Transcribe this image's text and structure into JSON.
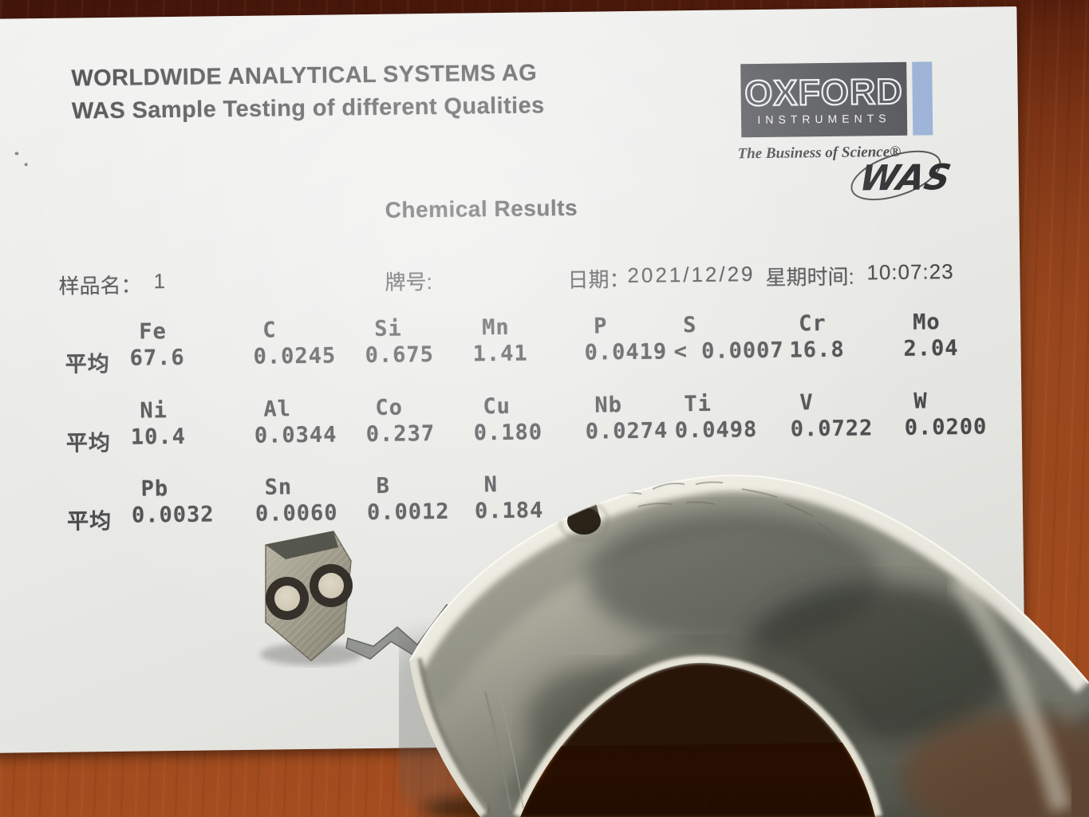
{
  "photo": {
    "paper": {
      "header_line1": "WORLDWIDE ANALYTICAL SYSTEMS AG",
      "header_line2": "WAS Sample Testing of different Qualities",
      "title": "Chemical Results",
      "info": {
        "sample_label": "样品名：",
        "sample_value": "1",
        "grade_label": "牌号:",
        "date_label": "日期：",
        "date_value": "2021/12/29",
        "weekday_time_label": "星期时间:",
        "time_value": "10:07:23"
      },
      "logo": {
        "brand": "OXFORD",
        "brand_sub": "INSTRUMENTS",
        "tagline": "The Business of Science®",
        "mark_text": "WAS"
      },
      "table": {
        "average_row_label": "平均",
        "groups": [
          [
            {
              "symbol": "Fe",
              "value": "67.6"
            },
            {
              "symbol": "C",
              "value": "0.0245"
            },
            {
              "symbol": "Si",
              "value": "0.675"
            },
            {
              "symbol": "Mn",
              "value": "1.41"
            },
            {
              "symbol": "P",
              "value": "0.0419"
            },
            {
              "symbol": "S",
              "value": "< 0.0007"
            },
            {
              "symbol": "Cr",
              "value": "16.8"
            },
            {
              "symbol": "Mo",
              "value": "2.04"
            }
          ],
          [
            {
              "symbol": "Ni",
              "value": "10.4"
            },
            {
              "symbol": "Al",
              "value": "0.0344"
            },
            {
              "symbol": "Co",
              "value": "0.237"
            },
            {
              "symbol": "Cu",
              "value": "0.180"
            },
            {
              "symbol": "Nb",
              "value": "0.0274"
            },
            {
              "symbol": "Ti",
              "value": "0.0498"
            },
            {
              "symbol": "V",
              "value": "0.0722"
            },
            {
              "symbol": "W",
              "value": "0.0200"
            }
          ],
          [
            {
              "symbol": "Pb",
              "value": "0.0032"
            },
            {
              "symbol": "Sn",
              "value": "0.0060"
            },
            {
              "symbol": "B",
              "value": "0.0012"
            },
            {
              "symbol": "N",
              "value": "0.184"
            }
          ]
        ]
      },
      "colors": {
        "logo_box": "#57585c",
        "logo_accent_bar": "#9db4d8",
        "print_text": "#48484b",
        "desk_wood": "#8f4019"
      }
    }
  }
}
